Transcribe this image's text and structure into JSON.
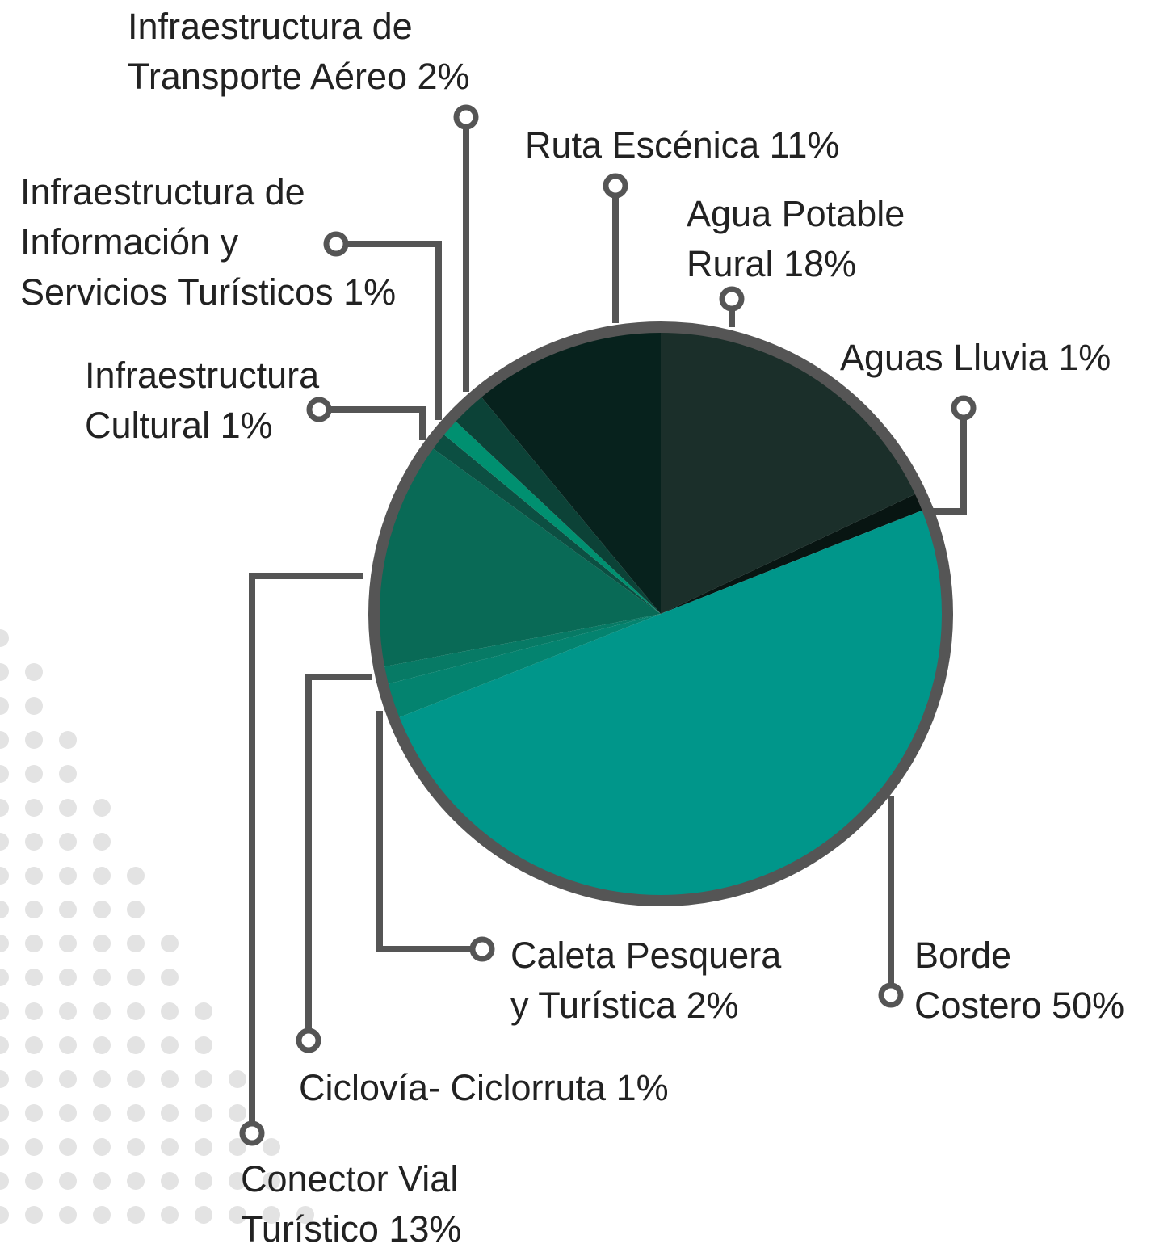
{
  "chart_data": {
    "type": "pie",
    "categories": [
      "Agua Potable Rural",
      "Aguas Lluvia",
      "Borde Costero",
      "Caleta Pesquera y Turística",
      "Ciclovía- Ciclorruta",
      "Conector Vial Turístico",
      "Infraestructura Cultural",
      "Infraestructura de Información y Servicios Turísticos",
      "Infraestructura de Transporte Aéreo",
      "Ruta Escénica"
    ],
    "values": [
      18,
      1,
      50,
      2,
      1,
      13,
      1,
      1,
      2,
      11
    ],
    "value_labels": [
      "18%",
      "1%",
      "50%",
      "2%",
      "1%",
      "13%",
      "1%",
      "1%",
      "2%",
      "11%"
    ],
    "colors": [
      "#1b2f2a",
      "#081512",
      "#00968a",
      "#04836f",
      "#077a65",
      "#096a56",
      "#0c4f42",
      "#009070",
      "#0c4237",
      "#07221d"
    ]
  }
}
